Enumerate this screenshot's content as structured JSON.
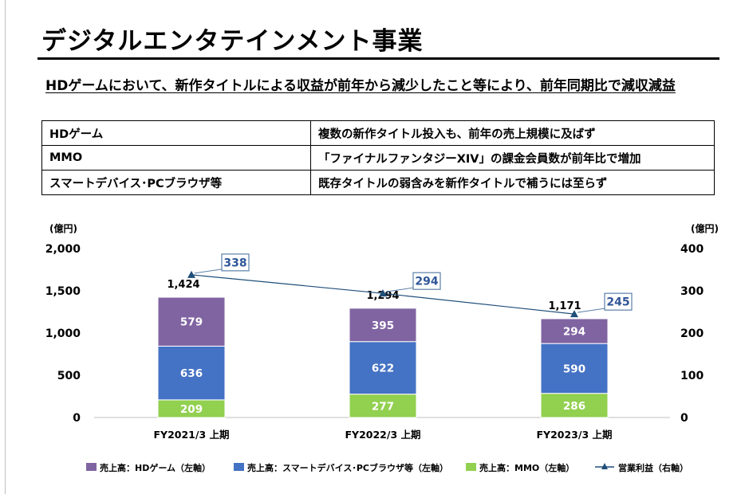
{
  "title": "デジタルエンタテインメント事業",
  "headline": "HDゲームにおいて、新作タイトルによる収益が前年から減少したこと等により、前年同期比で減収減益",
  "summary_rows": [
    {
      "segment": "HDゲーム",
      "comment": "複数の新作タイトル投入も、前年の売上規模に及ばず"
    },
    {
      "segment": "MMO",
      "comment": "「ファイナルファンタジーXIV」の課金会員数が前年比で増加"
    },
    {
      "segment": "スマートデバイス･PCブラウザ等",
      "comment": "既存タイトルの弱含みを新作タイトルで補うには至らず"
    }
  ],
  "chart_data": {
    "type": "bar",
    "stacked": true,
    "categories": [
      "FY2021/3 上期",
      "FY2022/3 上期",
      "FY2023/3 上期"
    ],
    "left_axis": {
      "unit": "(億円)",
      "min": 0,
      "max": 2000,
      "ticks": [
        0,
        500,
        1000,
        1500,
        2000
      ],
      "tick_labels": [
        "0",
        "500",
        "1,000",
        "1,500",
        "2,000"
      ]
    },
    "right_axis": {
      "unit": "(億円)",
      "min": 0,
      "max": 400,
      "ticks": [
        0,
        100,
        200,
        300,
        400
      ],
      "tick_labels": [
        "0",
        "100",
        "200",
        "300",
        "400"
      ]
    },
    "series": [
      {
        "name": "売上高：MMO（左軸）",
        "color": "#92d050",
        "values": [
          209,
          277,
          286
        ],
        "labels": [
          "209",
          "277",
          "286"
        ]
      },
      {
        "name": "売上高：スマートデバイス･PCブラウザ等（左軸）",
        "color": "#4472c4",
        "values": [
          636,
          622,
          590
        ],
        "labels": [
          "636",
          "622",
          "590"
        ]
      },
      {
        "name": "売上高：HDゲーム（左軸）",
        "color": "#8064a2",
        "values": [
          579,
          395,
          294
        ],
        "labels": [
          "579",
          "395",
          "294"
        ]
      }
    ],
    "totals": [
      1424,
      1294,
      1171
    ],
    "total_labels": [
      "1,424",
      "1,294",
      "1,171"
    ],
    "line_series": {
      "name": "営業利益（右軸）",
      "axis": "right",
      "color": "#1f4e79",
      "values": [
        338,
        294,
        245
      ],
      "labels": [
        "338",
        "294",
        "245"
      ]
    },
    "legend": [
      "売上高：HDゲーム（左軸）",
      "売上高：スマートデバイス･PCブラウザ等（左軸）",
      "売上高：MMO（左軸）",
      "営業利益（右軸）"
    ],
    "legend_colors": [
      "#8064a2",
      "#4472c4",
      "#92d050",
      "#1f4e79"
    ],
    "legend_position": "bottom"
  }
}
